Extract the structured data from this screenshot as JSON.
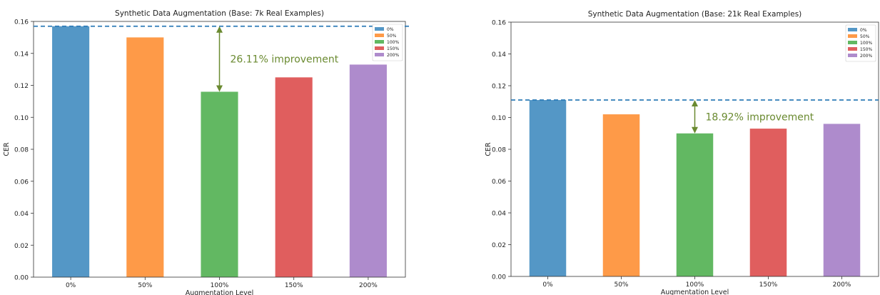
{
  "colors": {
    "blue": "#5497c6",
    "orange": "#fe9a48",
    "green": "#62b862",
    "red": "#e05e5e",
    "purple": "#ae8bcc",
    "dashed_line": "#2e7cb8",
    "arrow": "#6a8a30"
  },
  "chart_data": [
    {
      "type": "bar",
      "title": "Synthetic Data Augmentation (Base: 7k Real Examples)",
      "xlabel": "Augmentation Level",
      "ylabel": "CER",
      "categories": [
        "0%",
        "50%",
        "100%",
        "150%",
        "200%"
      ],
      "values": [
        0.157,
        0.15,
        0.116,
        0.125,
        0.133
      ],
      "ylim": [
        0,
        0.16
      ],
      "yticks": [
        "0.00",
        "0.02",
        "0.04",
        "0.06",
        "0.08",
        "0.10",
        "0.12",
        "0.14",
        "0.16"
      ],
      "legend": {
        "placement": "top-right",
        "entries": [
          "0%",
          "50%",
          "100%",
          "150%",
          "200%"
        ]
      },
      "reference_line": {
        "y": 0.157,
        "style": "dashed"
      },
      "annotation": {
        "text": "26.11% improvement",
        "from": 0.157,
        "to": 0.116,
        "category": "100%"
      },
      "grid": false
    },
    {
      "type": "bar",
      "title": "Synthetic Data Augmentation (Base: 21k Real Examples)",
      "xlabel": "Augmentation Level",
      "ylabel": "CER",
      "categories": [
        "0%",
        "50%",
        "100%",
        "150%",
        "200%"
      ],
      "values": [
        0.111,
        0.102,
        0.09,
        0.093,
        0.096
      ],
      "ylim": [
        0,
        0.16
      ],
      "yticks": [
        "0.00",
        "0.02",
        "0.04",
        "0.06",
        "0.08",
        "0.10",
        "0.12",
        "0.14",
        "0.16"
      ],
      "legend": {
        "placement": "top-right",
        "entries": [
          "0%",
          "50%",
          "100%",
          "150%",
          "200%"
        ]
      },
      "reference_line": {
        "y": 0.111,
        "style": "dashed"
      },
      "annotation": {
        "text": "18.92% improvement",
        "from": 0.111,
        "to": 0.09,
        "category": "100%"
      },
      "grid": false
    }
  ]
}
